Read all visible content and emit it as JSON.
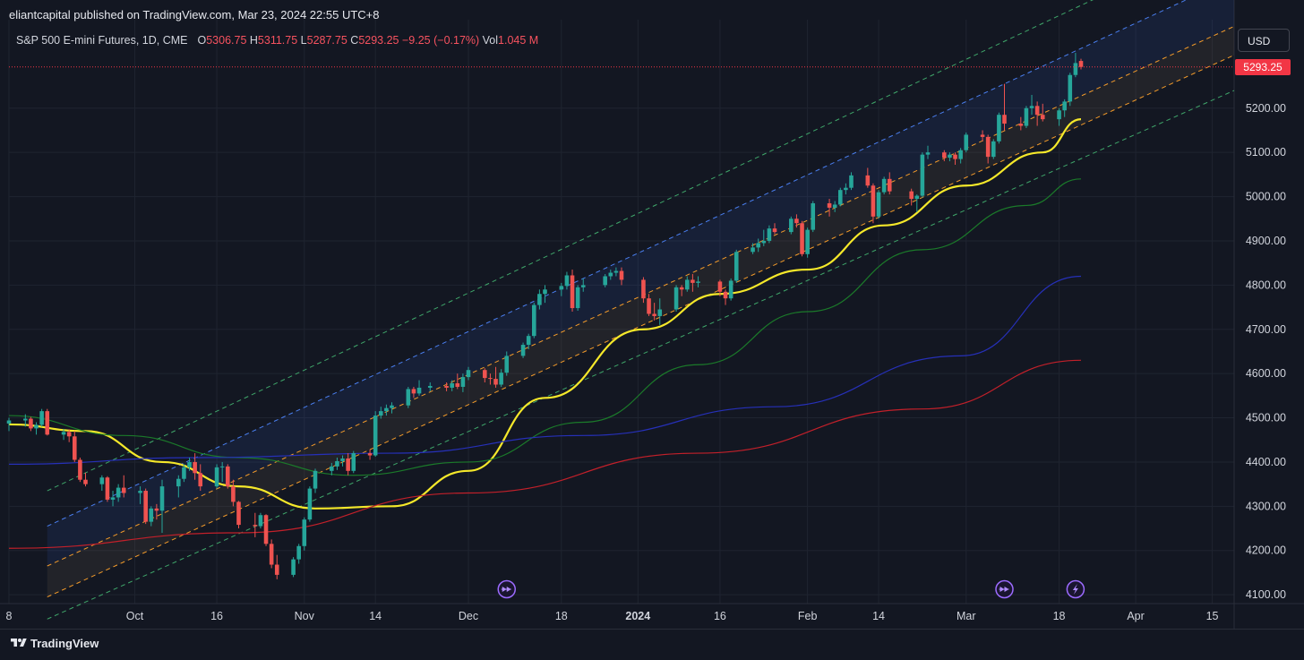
{
  "header": {
    "publisher_line": "eliantcapital published on TradingView.com, Mar 23, 2024 22:55 UTC+8"
  },
  "legend": {
    "symbol": "S&P 500 E-mini Futures, 1D, CME",
    "open_label": "O",
    "open": "5306.75",
    "high_label": "H",
    "high": "5311.75",
    "low_label": "L",
    "low": "5287.75",
    "close_label": "C",
    "close": "5293.25",
    "change": "−9.25 (−0.17%)",
    "vol_label": "Vol",
    "vol": "1.045 M"
  },
  "currency_button": "USD",
  "last_price": "5293.25",
  "footer": {
    "brand": "TradingView"
  },
  "colors": {
    "background": "#131722",
    "up": "#26a69a",
    "down": "#ef5350",
    "ma_fast": "#f5e82a",
    "ma_mid": "#1b7a2a",
    "ma_slow": "#2630b8",
    "ma_200": "#c2202a",
    "channel_upper": "#4a7ff0",
    "channel_mid": "#f59c2a",
    "channel_outer": "#3fa66a"
  },
  "events": [
    {
      "date": "2023-12-08",
      "icon": "fast-forward-icon"
    },
    {
      "date": "2024-03-08",
      "icon": "fast-forward-icon"
    },
    {
      "date": "2024-03-21",
      "icon": "lightning-icon"
    }
  ],
  "chart_data": {
    "type": "candlestick",
    "x_ticks": [
      {
        "label": "8",
        "date": "2023-09-08"
      },
      {
        "label": "Oct",
        "date": "2023-10-01"
      },
      {
        "label": "16",
        "date": "2023-10-16"
      },
      {
        "label": "Nov",
        "date": "2023-11-01"
      },
      {
        "label": "14",
        "date": "2023-11-14"
      },
      {
        "label": "Dec",
        "date": "2023-12-01"
      },
      {
        "label": "18",
        "date": "2023-12-18"
      },
      {
        "label": "2024",
        "date": "2024-01-01"
      },
      {
        "label": "16",
        "date": "2024-01-16"
      },
      {
        "label": "Feb",
        "date": "2024-02-01"
      },
      {
        "label": "14",
        "date": "2024-02-14"
      },
      {
        "label": "Mar",
        "date": "2024-03-01"
      },
      {
        "label": "18",
        "date": "2024-03-18"
      },
      {
        "label": "Apr",
        "date": "2024-04-01"
      },
      {
        "label": "15",
        "date": "2024-04-15"
      }
    ],
    "y_ticks": [
      "4100.00",
      "4200.00",
      "4300.00",
      "4400.00",
      "4500.00",
      "4600.00",
      "4700.00",
      "4800.00",
      "4900.00",
      "5000.00",
      "5100.00",
      "5200.00"
    ],
    "ylim": [
      4080,
      5400
    ],
    "xlim": [
      "2023-09-08",
      "2024-04-19"
    ],
    "candles": [
      [
        "2023-09-08",
        4487,
        4500,
        4470,
        4494
      ],
      [
        "2023-09-11",
        4494,
        4508,
        4480,
        4498
      ],
      [
        "2023-09-12",
        4498,
        4502,
        4470,
        4476
      ],
      [
        "2023-09-13",
        4476,
        4490,
        4462,
        4484
      ],
      [
        "2023-09-14",
        4484,
        4520,
        4480,
        4515
      ],
      [
        "2023-09-15",
        4515,
        4520,
        4460,
        4462
      ],
      [
        "2023-09-18",
        4462,
        4475,
        4450,
        4468
      ],
      [
        "2023-09-19",
        4468,
        4474,
        4445,
        4458
      ],
      [
        "2023-09-20",
        4458,
        4470,
        4400,
        4405
      ],
      [
        "2023-09-21",
        4405,
        4410,
        4355,
        4360
      ],
      [
        "2023-09-22",
        4360,
        4376,
        4345,
        4350
      ],
      [
        "2023-09-25",
        4350,
        4370,
        4335,
        4365
      ],
      [
        "2023-09-26",
        4365,
        4368,
        4310,
        4315
      ],
      [
        "2023-09-27",
        4315,
        4335,
        4300,
        4320
      ],
      [
        "2023-09-28",
        4320,
        4350,
        4310,
        4342
      ],
      [
        "2023-09-29",
        4342,
        4370,
        4320,
        4330
      ],
      [
        "2023-10-02",
        4330,
        4345,
        4305,
        4335
      ],
      [
        "2023-10-03",
        4335,
        4340,
        4260,
        4265
      ],
      [
        "2023-10-04",
        4265,
        4300,
        4255,
        4295
      ],
      [
        "2023-10-05",
        4295,
        4305,
        4270,
        4290
      ],
      [
        "2023-10-06",
        4290,
        4360,
        4240,
        4345
      ],
      [
        "2023-10-09",
        4345,
        4370,
        4320,
        4362
      ],
      [
        "2023-10-10",
        4362,
        4395,
        4355,
        4388
      ],
      [
        "2023-10-11",
        4388,
        4410,
        4380,
        4400
      ],
      [
        "2023-10-12",
        4400,
        4420,
        4360,
        4375
      ],
      [
        "2023-10-13",
        4375,
        4395,
        4335,
        4345
      ],
      [
        "2023-10-16",
        4345,
        4395,
        4340,
        4388
      ],
      [
        "2023-10-17",
        4388,
        4400,
        4355,
        4390
      ],
      [
        "2023-10-18",
        4390,
        4395,
        4340,
        4345
      ],
      [
        "2023-10-19",
        4345,
        4360,
        4300,
        4310
      ],
      [
        "2023-10-20",
        4310,
        4312,
        4250,
        4258
      ],
      [
        "2023-10-23",
        4258,
        4285,
        4230,
        4255
      ],
      [
        "2023-10-24",
        4255,
        4285,
        4250,
        4280
      ],
      [
        "2023-10-25",
        4280,
        4282,
        4210,
        4215
      ],
      [
        "2023-10-26",
        4215,
        4225,
        4160,
        4168
      ],
      [
        "2023-10-27",
        4168,
        4190,
        4135,
        4145
      ],
      [
        "2023-10-30",
        4145,
        4185,
        4140,
        4180
      ],
      [
        "2023-10-31",
        4180,
        4215,
        4170,
        4210
      ],
      [
        "2023-11-01",
        4210,
        4275,
        4200,
        4270
      ],
      [
        "2023-11-02",
        4270,
        4345,
        4265,
        4340
      ],
      [
        "2023-11-03",
        4340,
        4385,
        4330,
        4380
      ],
      [
        "2023-11-06",
        4380,
        4398,
        4370,
        4390
      ],
      [
        "2023-11-07",
        4390,
        4410,
        4382,
        4402
      ],
      [
        "2023-11-08",
        4402,
        4415,
        4390,
        4408
      ],
      [
        "2023-11-09",
        4408,
        4420,
        4370,
        4380
      ],
      [
        "2023-11-10",
        4380,
        4425,
        4375,
        4420
      ],
      [
        "2023-11-13",
        4420,
        4428,
        4405,
        4415
      ],
      [
        "2023-11-14",
        4415,
        4515,
        4412,
        4505
      ],
      [
        "2023-11-15",
        4505,
        4525,
        4498,
        4515
      ],
      [
        "2023-11-16",
        4515,
        4530,
        4505,
        4522
      ],
      [
        "2023-11-17",
        4522,
        4535,
        4510,
        4528
      ],
      [
        "2023-11-20",
        4528,
        4570,
        4522,
        4565
      ],
      [
        "2023-11-21",
        4565,
        4570,
        4545,
        4555
      ],
      [
        "2023-11-22",
        4555,
        4585,
        4550,
        4568
      ],
      [
        "2023-11-24",
        4568,
        4580,
        4560,
        4572
      ],
      [
        "2023-11-27",
        4572,
        4580,
        4560,
        4568
      ],
      [
        "2023-11-28",
        4568,
        4585,
        4560,
        4578
      ],
      [
        "2023-11-29",
        4578,
        4600,
        4565,
        4570
      ],
      [
        "2023-11-30",
        4570,
        4600,
        4558,
        4592
      ],
      [
        "2023-12-01",
        4592,
        4615,
        4585,
        4608
      ],
      [
        "2023-12-04",
        4608,
        4612,
        4580,
        4590
      ],
      [
        "2023-12-05",
        4590,
        4600,
        4575,
        4588
      ],
      [
        "2023-12-06",
        4588,
        4615,
        4568,
        4575
      ],
      [
        "2023-12-07",
        4575,
        4610,
        4570,
        4602
      ],
      [
        "2023-12-08",
        4602,
        4650,
        4595,
        4640
      ],
      [
        "2023-12-11",
        4640,
        4670,
        4635,
        4665
      ],
      [
        "2023-12-12",
        4665,
        4690,
        4655,
        4685
      ],
      [
        "2023-12-13",
        4685,
        4760,
        4680,
        4755
      ],
      [
        "2023-12-14",
        4755,
        4790,
        4745,
        4780
      ],
      [
        "2023-12-15",
        4780,
        4800,
        4760,
        4790
      ],
      [
        "2023-12-18",
        4790,
        4805,
        4775,
        4798
      ],
      [
        "2023-12-19",
        4798,
        4830,
        4790,
        4822
      ],
      [
        "2023-12-20",
        4822,
        4835,
        4740,
        4748
      ],
      [
        "2023-12-21",
        4748,
        4800,
        4742,
        4795
      ],
      [
        "2023-12-22",
        4795,
        4815,
        4785,
        4800
      ],
      [
        "2023-12-26",
        4800,
        4825,
        4795,
        4820
      ],
      [
        "2023-12-27",
        4820,
        4835,
        4812,
        4828
      ],
      [
        "2023-12-28",
        4828,
        4840,
        4820,
        4832
      ],
      [
        "2023-12-29",
        4832,
        4840,
        4800,
        4812
      ],
      [
        "2024-01-02",
        4812,
        4818,
        4760,
        4770
      ],
      [
        "2024-01-03",
        4770,
        4780,
        4730,
        4735
      ],
      [
        "2024-01-04",
        4735,
        4760,
        4720,
        4730
      ],
      [
        "2024-01-05",
        4730,
        4770,
        4710,
        4745
      ],
      [
        "2024-01-08",
        4745,
        4800,
        4740,
        4795
      ],
      [
        "2024-01-09",
        4795,
        4800,
        4775,
        4790
      ],
      [
        "2024-01-10",
        4790,
        4820,
        4785,
        4812
      ],
      [
        "2024-01-11",
        4812,
        4825,
        4785,
        4805
      ],
      [
        "2024-01-12",
        4805,
        4820,
        4795,
        4808
      ],
      [
        "2024-01-16",
        4808,
        4812,
        4775,
        4785
      ],
      [
        "2024-01-17",
        4785,
        4790,
        4755,
        4770
      ],
      [
        "2024-01-18",
        4770,
        4815,
        4765,
        4810
      ],
      [
        "2024-01-19",
        4810,
        4880,
        4805,
        4875
      ],
      [
        "2024-01-22",
        4875,
        4895,
        4870,
        4885
      ],
      [
        "2024-01-23",
        4885,
        4905,
        4875,
        4895
      ],
      [
        "2024-01-24",
        4895,
        4925,
        4888,
        4900
      ],
      [
        "2024-01-25",
        4900,
        4935,
        4895,
        4928
      ],
      [
        "2024-01-26",
        4928,
        4940,
        4915,
        4920
      ],
      [
        "2024-01-29",
        4920,
        4955,
        4915,
        4950
      ],
      [
        "2024-01-30",
        4950,
        4960,
        4930,
        4940
      ],
      [
        "2024-01-31",
        4940,
        4945,
        4865,
        4870
      ],
      [
        "2024-02-01",
        4870,
        4930,
        4862,
        4925
      ],
      [
        "2024-02-02",
        4925,
        4990,
        4920,
        4985
      ],
      [
        "2024-02-05",
        4985,
        4995,
        4955,
        4975
      ],
      [
        "2024-02-06",
        4975,
        4990,
        4965,
        4982
      ],
      [
        "2024-02-07",
        4982,
        5020,
        4978,
        5015
      ],
      [
        "2024-02-08",
        5015,
        5030,
        5005,
        5020
      ],
      [
        "2024-02-09",
        5020,
        5055,
        5015,
        5048
      ],
      [
        "2024-02-12",
        5048,
        5065,
        5020,
        5025
      ],
      [
        "2024-02-13",
        5025,
        5030,
        4940,
        4955
      ],
      [
        "2024-02-14",
        4955,
        5015,
        4950,
        5010
      ],
      [
        "2024-02-15",
        5010,
        5045,
        5005,
        5040
      ],
      [
        "2024-02-16",
        5040,
        5055,
        5005,
        5012
      ],
      [
        "2024-02-20",
        5012,
        5018,
        4980,
        4995
      ],
      [
        "2024-02-21",
        4995,
        5005,
        4965,
        5002
      ],
      [
        "2024-02-22",
        5002,
        5100,
        4998,
        5095
      ],
      [
        "2024-02-23",
        5095,
        5115,
        5085,
        5100
      ],
      [
        "2024-02-26",
        5100,
        5105,
        5080,
        5088
      ],
      [
        "2024-02-27",
        5088,
        5100,
        5080,
        5095
      ],
      [
        "2024-02-28",
        5095,
        5100,
        5072,
        5085
      ],
      [
        "2024-02-29",
        5085,
        5110,
        5075,
        5105
      ],
      [
        "2024-03-01",
        5105,
        5145,
        5100,
        5140
      ],
      [
        "2024-03-04",
        5140,
        5150,
        5125,
        5135
      ],
      [
        "2024-03-05",
        5135,
        5140,
        5075,
        5090
      ],
      [
        "2024-03-06",
        5090,
        5130,
        5085,
        5125
      ],
      [
        "2024-03-07",
        5125,
        5190,
        5120,
        5185
      ],
      [
        "2024-03-08",
        5185,
        5255,
        5150,
        5165
      ],
      [
        "2024-03-11",
        5165,
        5180,
        5150,
        5160
      ],
      [
        "2024-03-12",
        5160,
        5205,
        5155,
        5200
      ],
      [
        "2024-03-13",
        5200,
        5230,
        5185,
        5205
      ],
      [
        "2024-03-14",
        5205,
        5215,
        5160,
        5185
      ],
      [
        "2024-03-15",
        5185,
        5210,
        5170,
        5175
      ],
      [
        "2024-03-18",
        5175,
        5200,
        5160,
        5195
      ],
      [
        "2024-03-19",
        5195,
        5220,
        5180,
        5215
      ],
      [
        "2024-03-20",
        5215,
        5280,
        5205,
        5275
      ],
      [
        "2024-03-21",
        5275,
        5325,
        5270,
        5302
      ],
      [
        "2024-03-22",
        5306.75,
        5311.75,
        5287.75,
        5293.25
      ]
    ],
    "moving_averages": [
      {
        "color": "#f5e82a",
        "points": [
          [
            "2023-09-08",
            4485
          ],
          [
            "2023-09-22",
            4470
          ],
          [
            "2023-10-06",
            4400
          ],
          [
            "2023-10-20",
            4345
          ],
          [
            "2023-11-03",
            4295
          ],
          [
            "2023-11-17",
            4300
          ],
          [
            "2023-12-01",
            4380
          ],
          [
            "2023-12-15",
            4545
          ],
          [
            "2024-01-02",
            4700
          ],
          [
            "2024-01-16",
            4780
          ],
          [
            "2024-02-01",
            4835
          ],
          [
            "2024-02-15",
            4935
          ],
          [
            "2024-03-01",
            5025
          ],
          [
            "2024-03-15",
            5100
          ],
          [
            "2024-03-22",
            5175
          ]
        ]
      },
      {
        "color": "#1b7a2a",
        "points": [
          [
            "2023-09-08",
            4505
          ],
          [
            "2023-09-29",
            4460
          ],
          [
            "2023-10-20",
            4410
          ],
          [
            "2023-11-10",
            4370
          ],
          [
            "2023-12-01",
            4400
          ],
          [
            "2023-12-22",
            4490
          ],
          [
            "2024-01-12",
            4620
          ],
          [
            "2024-02-01",
            4740
          ],
          [
            "2024-02-22",
            4880
          ],
          [
            "2024-03-12",
            4980
          ],
          [
            "2024-03-22",
            5040
          ]
        ]
      },
      {
        "color": "#2630b8",
        "points": [
          [
            "2023-09-08",
            4395
          ],
          [
            "2023-10-13",
            4410
          ],
          [
            "2023-11-17",
            4420
          ],
          [
            "2023-12-22",
            4460
          ],
          [
            "2024-01-26",
            4525
          ],
          [
            "2024-02-29",
            4640
          ],
          [
            "2024-03-22",
            4820
          ]
        ]
      },
      {
        "color": "#c2202a",
        "points": [
          [
            "2023-09-08",
            4205
          ],
          [
            "2023-10-20",
            4240
          ],
          [
            "2023-12-01",
            4330
          ],
          [
            "2024-01-12",
            4420
          ],
          [
            "2024-02-22",
            4520
          ],
          [
            "2024-03-22",
            4630
          ]
        ]
      }
    ],
    "channel": {
      "start": "2023-09-15",
      "end": "2024-04-19",
      "upper": [
        4255,
        5495
      ],
      "mid_upper": [
        4165,
        5385
      ],
      "mid_lower": [
        4095,
        5320
      ],
      "outer_upper": [
        4335,
        5595
      ],
      "outer_lower": [
        4045,
        5240
      ]
    }
  }
}
